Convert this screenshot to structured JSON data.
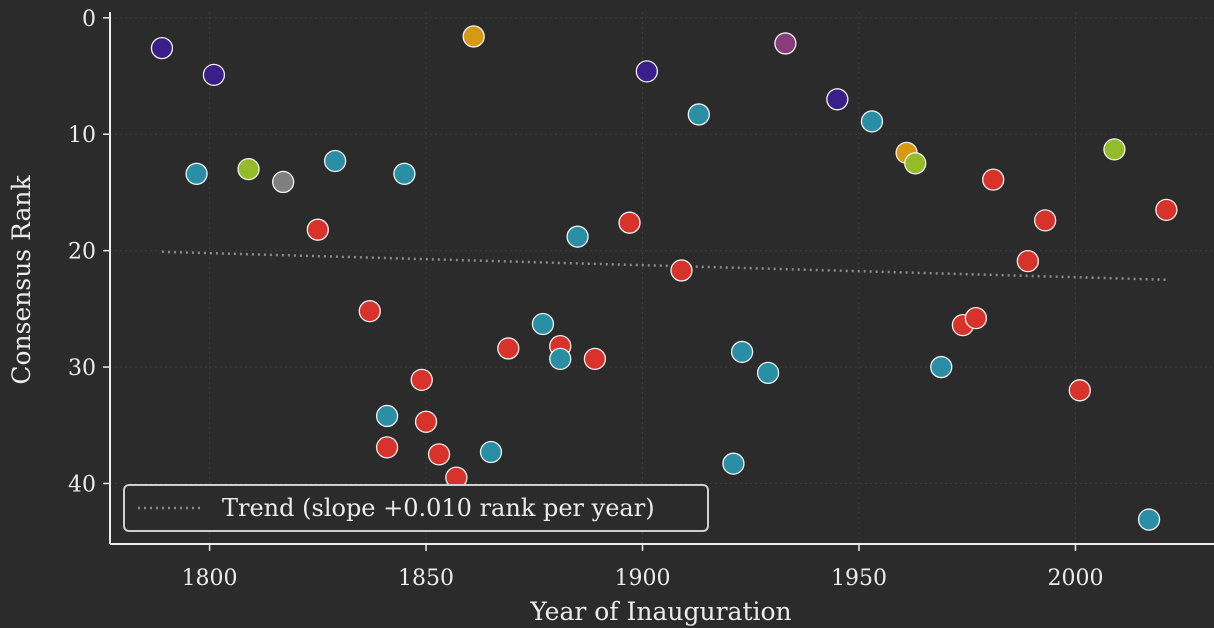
{
  "chart_data": {
    "type": "scatter",
    "xlabel": "Year of Inauguration",
    "ylabel": "Consensus Rank",
    "xlim": [
      1777,
      2032
    ],
    "ylim": [
      45.2,
      -0.5
    ],
    "y_inverted": true,
    "x_ticks": [
      1800,
      1850,
      1900,
      1950,
      2000
    ],
    "y_ticks": [
      0,
      10,
      20,
      30,
      40
    ],
    "grid": true,
    "legend_position": "bottom-left",
    "legend_entries": [
      {
        "label": "Trend (slope +0.010 rank per year)",
        "style": "dotted"
      }
    ],
    "colors": {
      "background": "#2b2b2b",
      "grid": "#3c3c3c",
      "axis": "#ececec",
      "trend": "#8c8c8c",
      "point_stroke": "#f2f2f2",
      "navy": "#3a1f8a",
      "teal": "#2a8fa5",
      "red": "#d8332b",
      "lime": "#93bb2a",
      "grey": "#7f7f7f",
      "gold": "#d59a12",
      "purple": "#8a3b7a"
    },
    "trend": {
      "x": [
        1789,
        2021
      ],
      "y": [
        20.1,
        22.5
      ]
    },
    "points": [
      {
        "x": 1789,
        "y": 2.6,
        "color": "navy"
      },
      {
        "x": 1797,
        "y": 13.4,
        "color": "teal"
      },
      {
        "x": 1801,
        "y": 4.9,
        "color": "navy"
      },
      {
        "x": 1809,
        "y": 13.0,
        "color": "lime"
      },
      {
        "x": 1817,
        "y": 14.1,
        "color": "grey"
      },
      {
        "x": 1825,
        "y": 18.2,
        "color": "red"
      },
      {
        "x": 1829,
        "y": 12.3,
        "color": "teal"
      },
      {
        "x": 1837,
        "y": 25.2,
        "color": "red"
      },
      {
        "x": 1841,
        "y": 34.2,
        "color": "teal"
      },
      {
        "x": 1841,
        "y": 36.9,
        "color": "red"
      },
      {
        "x": 1845,
        "y": 13.4,
        "color": "teal"
      },
      {
        "x": 1849,
        "y": 31.1,
        "color": "red"
      },
      {
        "x": 1850,
        "y": 34.7,
        "color": "red"
      },
      {
        "x": 1853,
        "y": 37.5,
        "color": "red"
      },
      {
        "x": 1857,
        "y": 39.5,
        "color": "red"
      },
      {
        "x": 1861,
        "y": 1.6,
        "color": "gold"
      },
      {
        "x": 1865,
        "y": 37.3,
        "color": "teal"
      },
      {
        "x": 1869,
        "y": 28.4,
        "color": "red"
      },
      {
        "x": 1877,
        "y": 26.3,
        "color": "teal"
      },
      {
        "x": 1881,
        "y": 28.2,
        "color": "red"
      },
      {
        "x": 1881,
        "y": 29.3,
        "color": "teal"
      },
      {
        "x": 1885,
        "y": 18.8,
        "color": "teal"
      },
      {
        "x": 1889,
        "y": 29.3,
        "color": "red"
      },
      {
        "x": 1897,
        "y": 17.6,
        "color": "red"
      },
      {
        "x": 1901,
        "y": 4.6,
        "color": "navy"
      },
      {
        "x": 1909,
        "y": 21.7,
        "color": "red"
      },
      {
        "x": 1913,
        "y": 8.3,
        "color": "teal"
      },
      {
        "x": 1921,
        "y": 38.3,
        "color": "teal"
      },
      {
        "x": 1923,
        "y": 28.7,
        "color": "teal"
      },
      {
        "x": 1929,
        "y": 30.5,
        "color": "teal"
      },
      {
        "x": 1933,
        "y": 2.2,
        "color": "purple"
      },
      {
        "x": 1945,
        "y": 7.0,
        "color": "navy"
      },
      {
        "x": 1953,
        "y": 8.9,
        "color": "teal"
      },
      {
        "x": 1961,
        "y": 11.6,
        "color": "gold"
      },
      {
        "x": 1963,
        "y": 12.5,
        "color": "lime"
      },
      {
        "x": 1969,
        "y": 30.0,
        "color": "teal"
      },
      {
        "x": 1974,
        "y": 26.4,
        "color": "red"
      },
      {
        "x": 1977,
        "y": 25.8,
        "color": "red"
      },
      {
        "x": 1981,
        "y": 13.9,
        "color": "red"
      },
      {
        "x": 1989,
        "y": 20.9,
        "color": "red"
      },
      {
        "x": 1993,
        "y": 17.4,
        "color": "red"
      },
      {
        "x": 2001,
        "y": 32.0,
        "color": "red"
      },
      {
        "x": 2009,
        "y": 11.3,
        "color": "lime"
      },
      {
        "x": 2017,
        "y": 43.1,
        "color": "teal"
      },
      {
        "x": 2021,
        "y": 16.5,
        "color": "red"
      }
    ]
  }
}
